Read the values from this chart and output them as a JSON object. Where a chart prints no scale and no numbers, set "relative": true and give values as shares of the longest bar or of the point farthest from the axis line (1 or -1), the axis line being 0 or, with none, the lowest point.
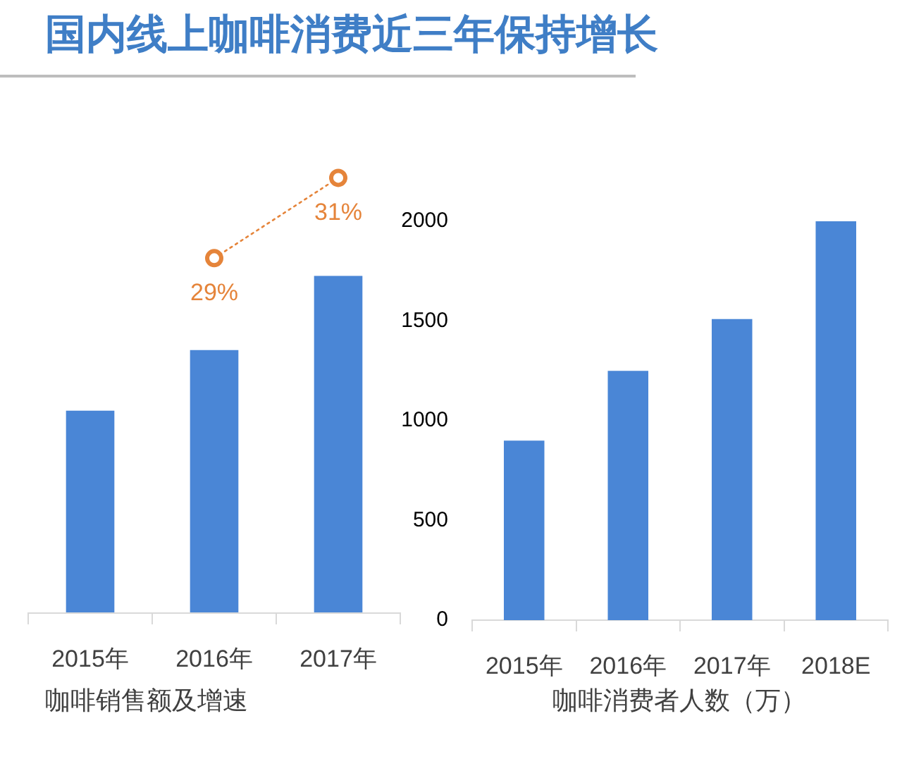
{
  "chart_data": [
    {
      "type": "other",
      "title": "国内线上咖啡消费近三年保持增长"
    },
    {
      "type": "bar",
      "xlabel": "咖啡销售额及增速",
      "categories": [
        "2015年",
        "2016年",
        "2017年"
      ],
      "relative": true,
      "values": [
        0.6,
        0.78,
        1
      ],
      "color": "#4a86d6",
      "grid": false,
      "legend": false
    },
    {
      "type": "line",
      "categories": [
        null,
        null,
        null
      ],
      "values": [
        null,
        29,
        31
      ],
      "value_labels": [
        null,
        "29%",
        "31%"
      ],
      "color": "#e5843a",
      "marker": "circle",
      "line_style": "dotted",
      "legend": false
    },
    {
      "type": "bar",
      "xlabel": "咖啡消费者人数（万）",
      "categories": [
        "2015年",
        "2016年",
        "2017年",
        "2018E"
      ],
      "values": [
        900,
        1250,
        1510,
        2000
      ],
      "color": "#4a86d6",
      "ylim": [
        0,
        2000
      ],
      "yticks": [
        0,
        500,
        1000,
        1500,
        2000
      ],
      "grid": false,
      "legend": false
    }
  ]
}
